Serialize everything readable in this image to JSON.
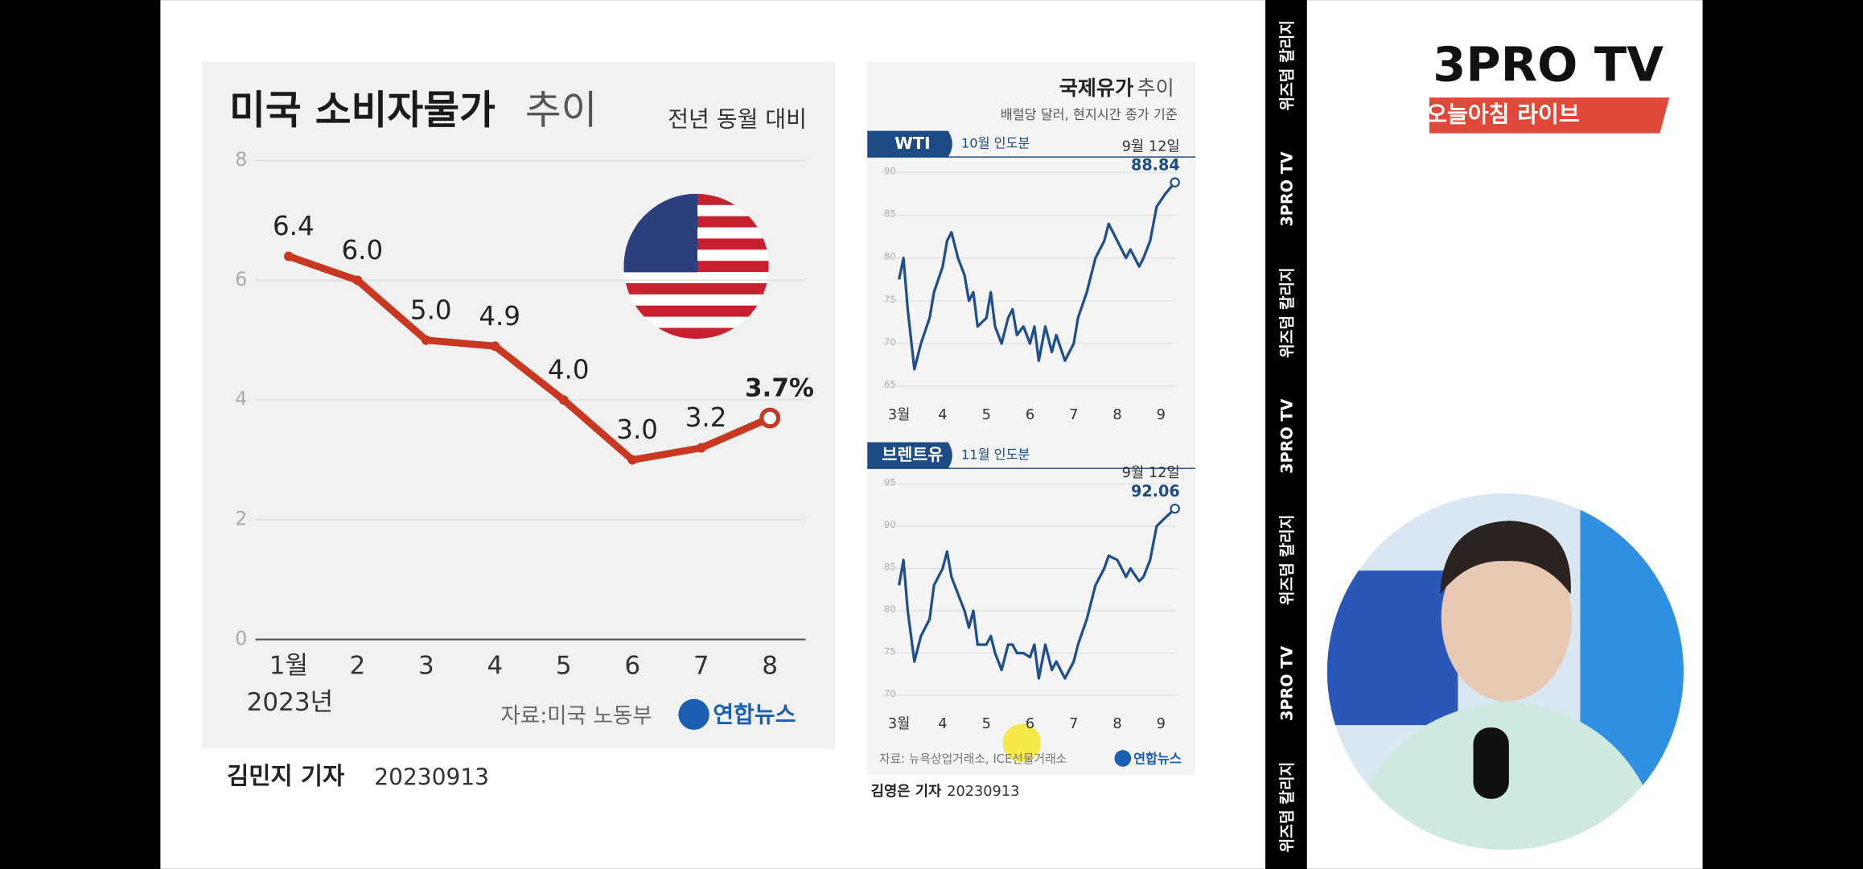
{
  "chart_data": [
    {
      "type": "line",
      "title": "미국 소비자물가",
      "title_suffix": "추이",
      "subtitle": "전년 동월 대비",
      "categories": [
        "1월",
        "2",
        "3",
        "4",
        "5",
        "6",
        "7",
        "8"
      ],
      "x_sublabel": "2023년",
      "values": [
        6.4,
        6.0,
        5.0,
        4.9,
        4.0,
        3.0,
        3.2,
        3.7
      ],
      "value_labels": [
        "6.4",
        "6.0",
        "5.0",
        "4.9",
        "4.0",
        "3.0",
        "3.2",
        "3.7%"
      ],
      "color": "#c8371f",
      "ylim": [
        0,
        8
      ],
      "yticks": [
        0,
        2,
        4,
        6,
        8
      ],
      "grid": true,
      "source": "자료:미국 노동부",
      "logo": "연합뉴스",
      "reporter": "김민지 기자",
      "date": "20230913"
    },
    {
      "type": "line",
      "title": "국제유가",
      "title_suffix": "추이",
      "subtitle": "배럴당 달러, 현지시간 종가 기준",
      "series_label": "WTI",
      "contract": "10월 인도분",
      "end_date": "9월 12일",
      "end_value_label": "88.84",
      "x": [
        3.0,
        3.1,
        3.2,
        3.35,
        3.5,
        3.7,
        3.8,
        4.0,
        4.1,
        4.2,
        4.35,
        4.5,
        4.6,
        4.7,
        4.8,
        5.0,
        5.1,
        5.2,
        5.35,
        5.5,
        5.6,
        5.7,
        5.85,
        6.0,
        6.1,
        6.2,
        6.35,
        6.5,
        6.6,
        6.8,
        7.0,
        7.1,
        7.3,
        7.5,
        7.7,
        7.8,
        8.0,
        8.2,
        8.3,
        8.5,
        8.6,
        8.75,
        8.9,
        9.1,
        9.32
      ],
      "values": [
        77.5,
        80,
        74,
        67,
        70,
        73,
        76,
        79,
        82,
        83,
        80,
        78,
        75,
        76,
        72,
        73,
        76,
        72,
        70,
        73,
        74,
        71,
        72,
        70,
        72,
        68,
        72,
        69,
        71,
        68,
        70,
        73,
        76,
        80,
        82,
        84,
        82,
        80,
        81,
        79,
        80,
        82,
        86,
        87.5,
        88.84
      ],
      "color": "#1f4e8c",
      "xlim": [
        2.6,
        9.35
      ],
      "xticks": [
        {
          "value": 3,
          "label": "3월"
        },
        4,
        5,
        6,
        7,
        8,
        9
      ],
      "ylim": [
        63,
        91
      ],
      "yticks": [
        65,
        70,
        75,
        80,
        85,
        90
      ],
      "grid": true
    },
    {
      "type": "line",
      "series_label": "브렌트유",
      "contract": "11월 인도분",
      "end_date": "9월 12일",
      "end_value_label": "92.06",
      "x": [
        3.0,
        3.1,
        3.2,
        3.35,
        3.5,
        3.7,
        3.8,
        4.0,
        4.1,
        4.2,
        4.35,
        4.5,
        4.6,
        4.7,
        4.8,
        5.0,
        5.1,
        5.2,
        5.35,
        5.5,
        5.6,
        5.7,
        5.85,
        6.0,
        6.1,
        6.2,
        6.35,
        6.5,
        6.6,
        6.8,
        7.0,
        7.1,
        7.3,
        7.5,
        7.7,
        7.8,
        8.0,
        8.2,
        8.3,
        8.5,
        8.6,
        8.75,
        8.9,
        9.1,
        9.32
      ],
      "values": [
        83,
        86,
        80,
        74,
        77,
        79,
        83,
        85,
        87,
        84,
        82,
        80,
        78,
        80,
        76,
        76,
        77,
        75,
        73,
        76,
        76,
        75,
        75,
        74.5,
        76,
        72,
        76,
        73,
        74,
        72,
        74,
        76,
        79,
        83,
        85,
        86.5,
        86,
        84,
        85,
        83.5,
        84,
        86,
        90,
        91,
        92.06
      ],
      "color": "#1f4e8c",
      "xlim": [
        2.6,
        9.35
      ],
      "xticks": [
        {
          "value": 3,
          "label": "3월"
        },
        4,
        5,
        6,
        7,
        8,
        9
      ],
      "ylim": [
        68,
        96
      ],
      "yticks": [
        70,
        75,
        80,
        85,
        90,
        95
      ],
      "grid": true,
      "source": "자료: 뉴욕상업거래소, ICE선물거래소",
      "logo": "연합뉴스",
      "reporter": "김영은 기자",
      "date": "20230913"
    }
  ],
  "channel": {
    "logo": "3PRO TV",
    "program": "오늘아침 라이브",
    "side_banner": [
      "위즈덤 칼리지",
      "3PRO TV",
      "위즈덤 칼리지",
      "3PRO TV",
      "위즈덤 칼리지",
      "3PRO TV",
      "위즈덤 칼리지"
    ]
  }
}
